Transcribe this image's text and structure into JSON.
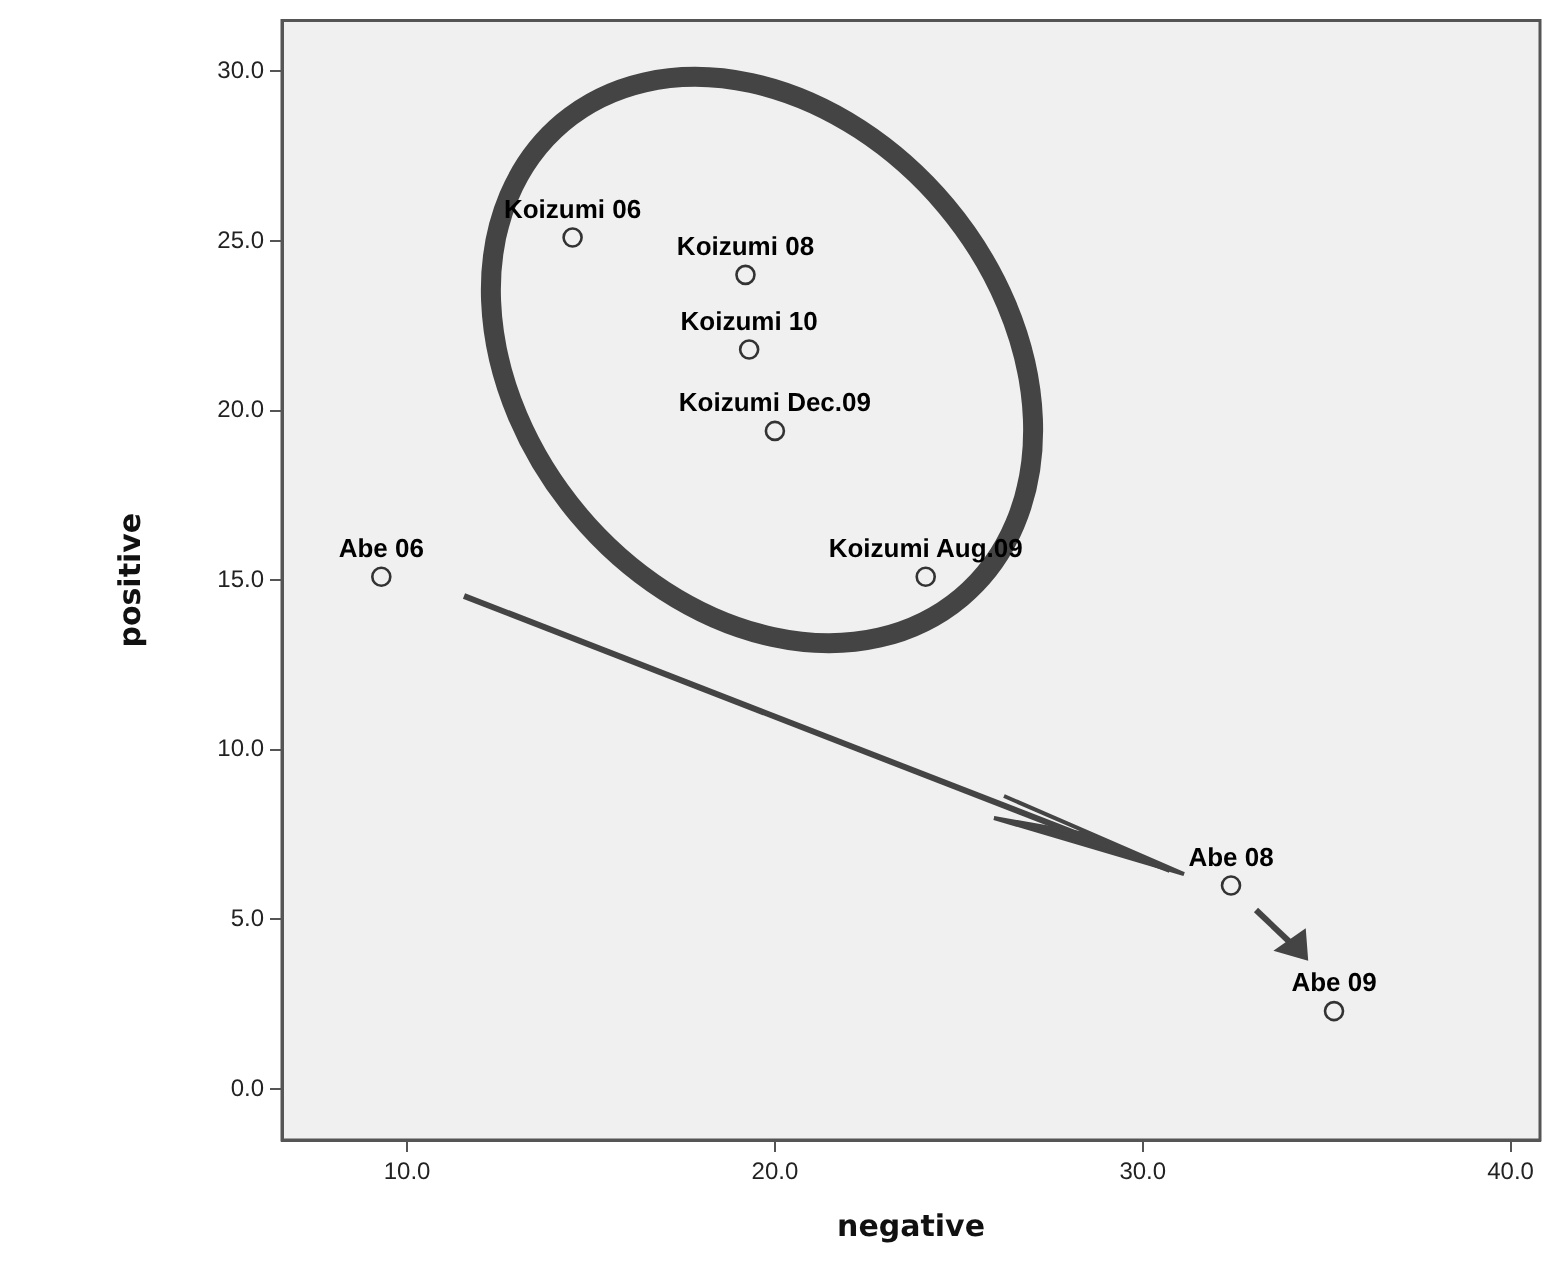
{
  "chart_data": {
    "type": "scatter",
    "xlabel": "negative",
    "ylabel": "positive",
    "marker": "circle",
    "grid": false,
    "legend": false,
    "xlim": [
      6.6,
      40.8
    ],
    "ylim": [
      -1.5,
      31.5
    ],
    "xticks": [
      {
        "value": 10,
        "label": "10.0"
      },
      {
        "value": 20,
        "label": "20.0"
      },
      {
        "value": 30,
        "label": "30.0"
      },
      {
        "value": 40,
        "label": "40.0"
      }
    ],
    "yticks": [
      {
        "value": 0,
        "label": "0.0"
      },
      {
        "value": 5,
        "label": "5.0"
      },
      {
        "value": 10,
        "label": "10.0"
      },
      {
        "value": 15,
        "label": "15.0"
      },
      {
        "value": 20,
        "label": "20.0"
      },
      {
        "value": 25,
        "label": "25.0"
      },
      {
        "value": 30,
        "label": "30.0"
      }
    ],
    "series": [
      {
        "name": "Koizumi 06",
        "color": "#333333",
        "x": [
          14.5
        ],
        "values": [
          25.1
        ]
      },
      {
        "name": "Koizumi 08",
        "color": "#333333",
        "x": [
          19.2
        ],
        "values": [
          24.0
        ]
      },
      {
        "name": "Koizumi 10",
        "color": "#333333",
        "x": [
          19.3
        ],
        "values": [
          21.8
        ]
      },
      {
        "name": "Koizumi Dec.09",
        "color": "#333333",
        "x": [
          20.0
        ],
        "values": [
          19.4
        ]
      },
      {
        "name": "Koizumi Aug.09",
        "color": "#333333",
        "x": [
          24.1
        ],
        "values": [
          15.1
        ]
      },
      {
        "name": "Abe 06",
        "color": "#333333",
        "x": [
          9.3
        ],
        "values": [
          15.1
        ]
      },
      {
        "name": "Abe 08",
        "color": "#333333",
        "x": [
          32.4
        ],
        "values": [
          6.0
        ]
      },
      {
        "name": "Abe 09",
        "color": "#333333",
        "x": [
          35.2
        ],
        "values": [
          2.3
        ]
      }
    ]
  }
}
